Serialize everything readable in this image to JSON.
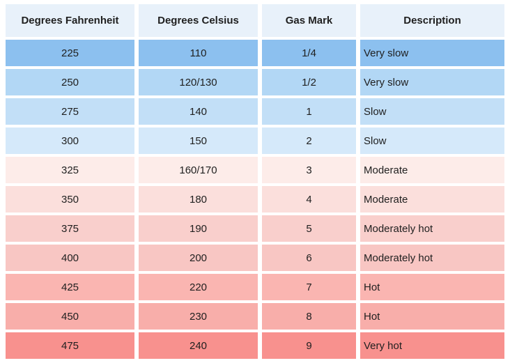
{
  "chart_data": {
    "type": "table",
    "columns": [
      {
        "id": "fahrenheit",
        "label": "Degrees Fahrenheit",
        "align": "center"
      },
      {
        "id": "celsius",
        "label": "Degrees Celsius",
        "align": "center"
      },
      {
        "id": "gas_mark",
        "label": "Gas Mark",
        "align": "center"
      },
      {
        "id": "description",
        "label": "Description",
        "align": "left"
      }
    ],
    "header_bg": "#e8f1fa",
    "text_color": "#1f1f1f",
    "gap_color": "#ffffff",
    "rows": [
      {
        "fahrenheit": "225",
        "celsius": "110",
        "gas_mark": "1/4",
        "description": "Very slow",
        "bg": "#8cc0ef"
      },
      {
        "fahrenheit": "250",
        "celsius": "120/130",
        "gas_mark": "1/2",
        "description": "Very slow",
        "bg": "#b2d7f5"
      },
      {
        "fahrenheit": "275",
        "celsius": "140",
        "gas_mark": "1",
        "description": "Slow",
        "bg": "#c2dff7"
      },
      {
        "fahrenheit": "300",
        "celsius": "150",
        "gas_mark": "2",
        "description": "Slow",
        "bg": "#d5e9fa"
      },
      {
        "fahrenheit": "325",
        "celsius": "160/170",
        "gas_mark": "3",
        "description": "Moderate",
        "bg": "#fdece9"
      },
      {
        "fahrenheit": "350",
        "celsius": "180",
        "gas_mark": "4",
        "description": "Moderate",
        "bg": "#fbdfdc"
      },
      {
        "fahrenheit": "375",
        "celsius": "190",
        "gas_mark": "5",
        "description": "Moderately hot",
        "bg": "#f9cfcc"
      },
      {
        "fahrenheit": "400",
        "celsius": "200",
        "gas_mark": "6",
        "description": "Moderately hot",
        "bg": "#f8c6c3"
      },
      {
        "fahrenheit": "425",
        "celsius": "220",
        "gas_mark": "7",
        "description": "Hot",
        "bg": "#fab5b1"
      },
      {
        "fahrenheit": "450",
        "celsius": "230",
        "gas_mark": "8",
        "description": "Hot",
        "bg": "#f8aeaa"
      },
      {
        "fahrenheit": "475",
        "celsius": "240",
        "gas_mark": "9",
        "description": "Very hot",
        "bg": "#f8918e"
      }
    ]
  }
}
